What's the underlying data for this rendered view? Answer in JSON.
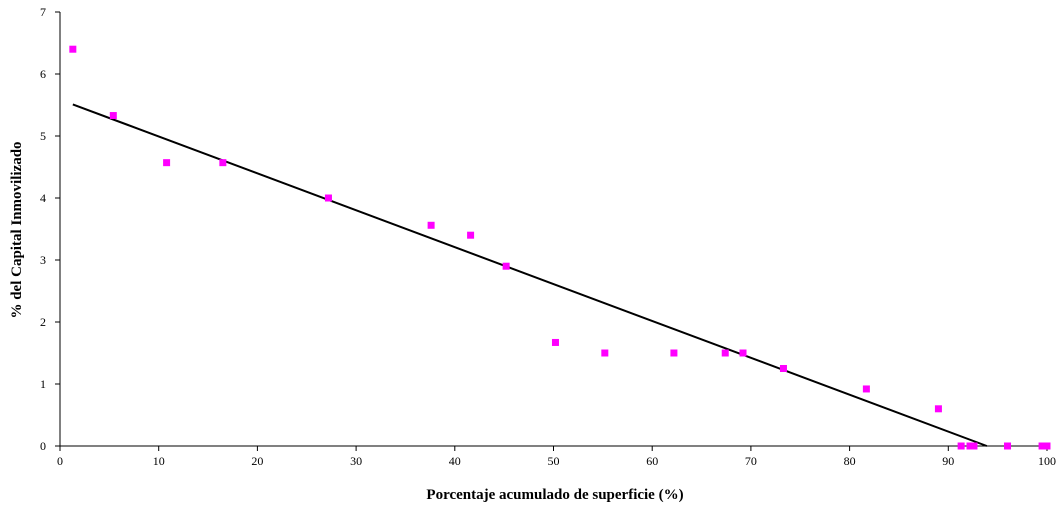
{
  "chart_data": {
    "type": "scatter",
    "title": "",
    "xlabel": "Porcentaje acumulado de superficie (%)",
    "ylabel": "% del Capital Inmovilizado",
    "xlim": [
      0,
      100
    ],
    "ylim": [
      0,
      7
    ],
    "xticks": [
      0,
      10,
      20,
      30,
      40,
      50,
      60,
      70,
      80,
      90,
      100
    ],
    "yticks": [
      0,
      1,
      2,
      3,
      4,
      5,
      6,
      7
    ],
    "grid": false,
    "legend": "none",
    "marker_color": "#ff00ff",
    "series": [
      {
        "points": [
          {
            "x": 1.3,
            "y": 6.4
          },
          {
            "x": 5.4,
            "y": 5.33
          },
          {
            "x": 10.8,
            "y": 4.57
          },
          {
            "x": 16.5,
            "y": 4.57
          },
          {
            "x": 27.2,
            "y": 4.0
          },
          {
            "x": 37.6,
            "y": 3.56
          },
          {
            "x": 41.6,
            "y": 3.4
          },
          {
            "x": 45.2,
            "y": 2.9
          },
          {
            "x": 50.2,
            "y": 1.67
          },
          {
            "x": 55.2,
            "y": 1.5
          },
          {
            "x": 62.2,
            "y": 1.5
          },
          {
            "x": 67.4,
            "y": 1.5
          },
          {
            "x": 69.2,
            "y": 1.5
          },
          {
            "x": 73.3,
            "y": 1.25
          },
          {
            "x": 81.7,
            "y": 0.92
          },
          {
            "x": 89.0,
            "y": 0.6
          },
          {
            "x": 91.3,
            "y": 0.0
          },
          {
            "x": 92.2,
            "y": 0.0
          },
          {
            "x": 92.6,
            "y": 0.0
          },
          {
            "x": 96.0,
            "y": 0.0
          },
          {
            "x": 99.5,
            "y": 0.0
          },
          {
            "x": 100.0,
            "y": 0.0
          }
        ]
      }
    ],
    "trendline": {
      "type": "linear",
      "color": "#000000",
      "start": {
        "x": 1.3,
        "y": 5.51
      },
      "end": {
        "x": 93.9,
        "y": 0.0
      }
    }
  }
}
